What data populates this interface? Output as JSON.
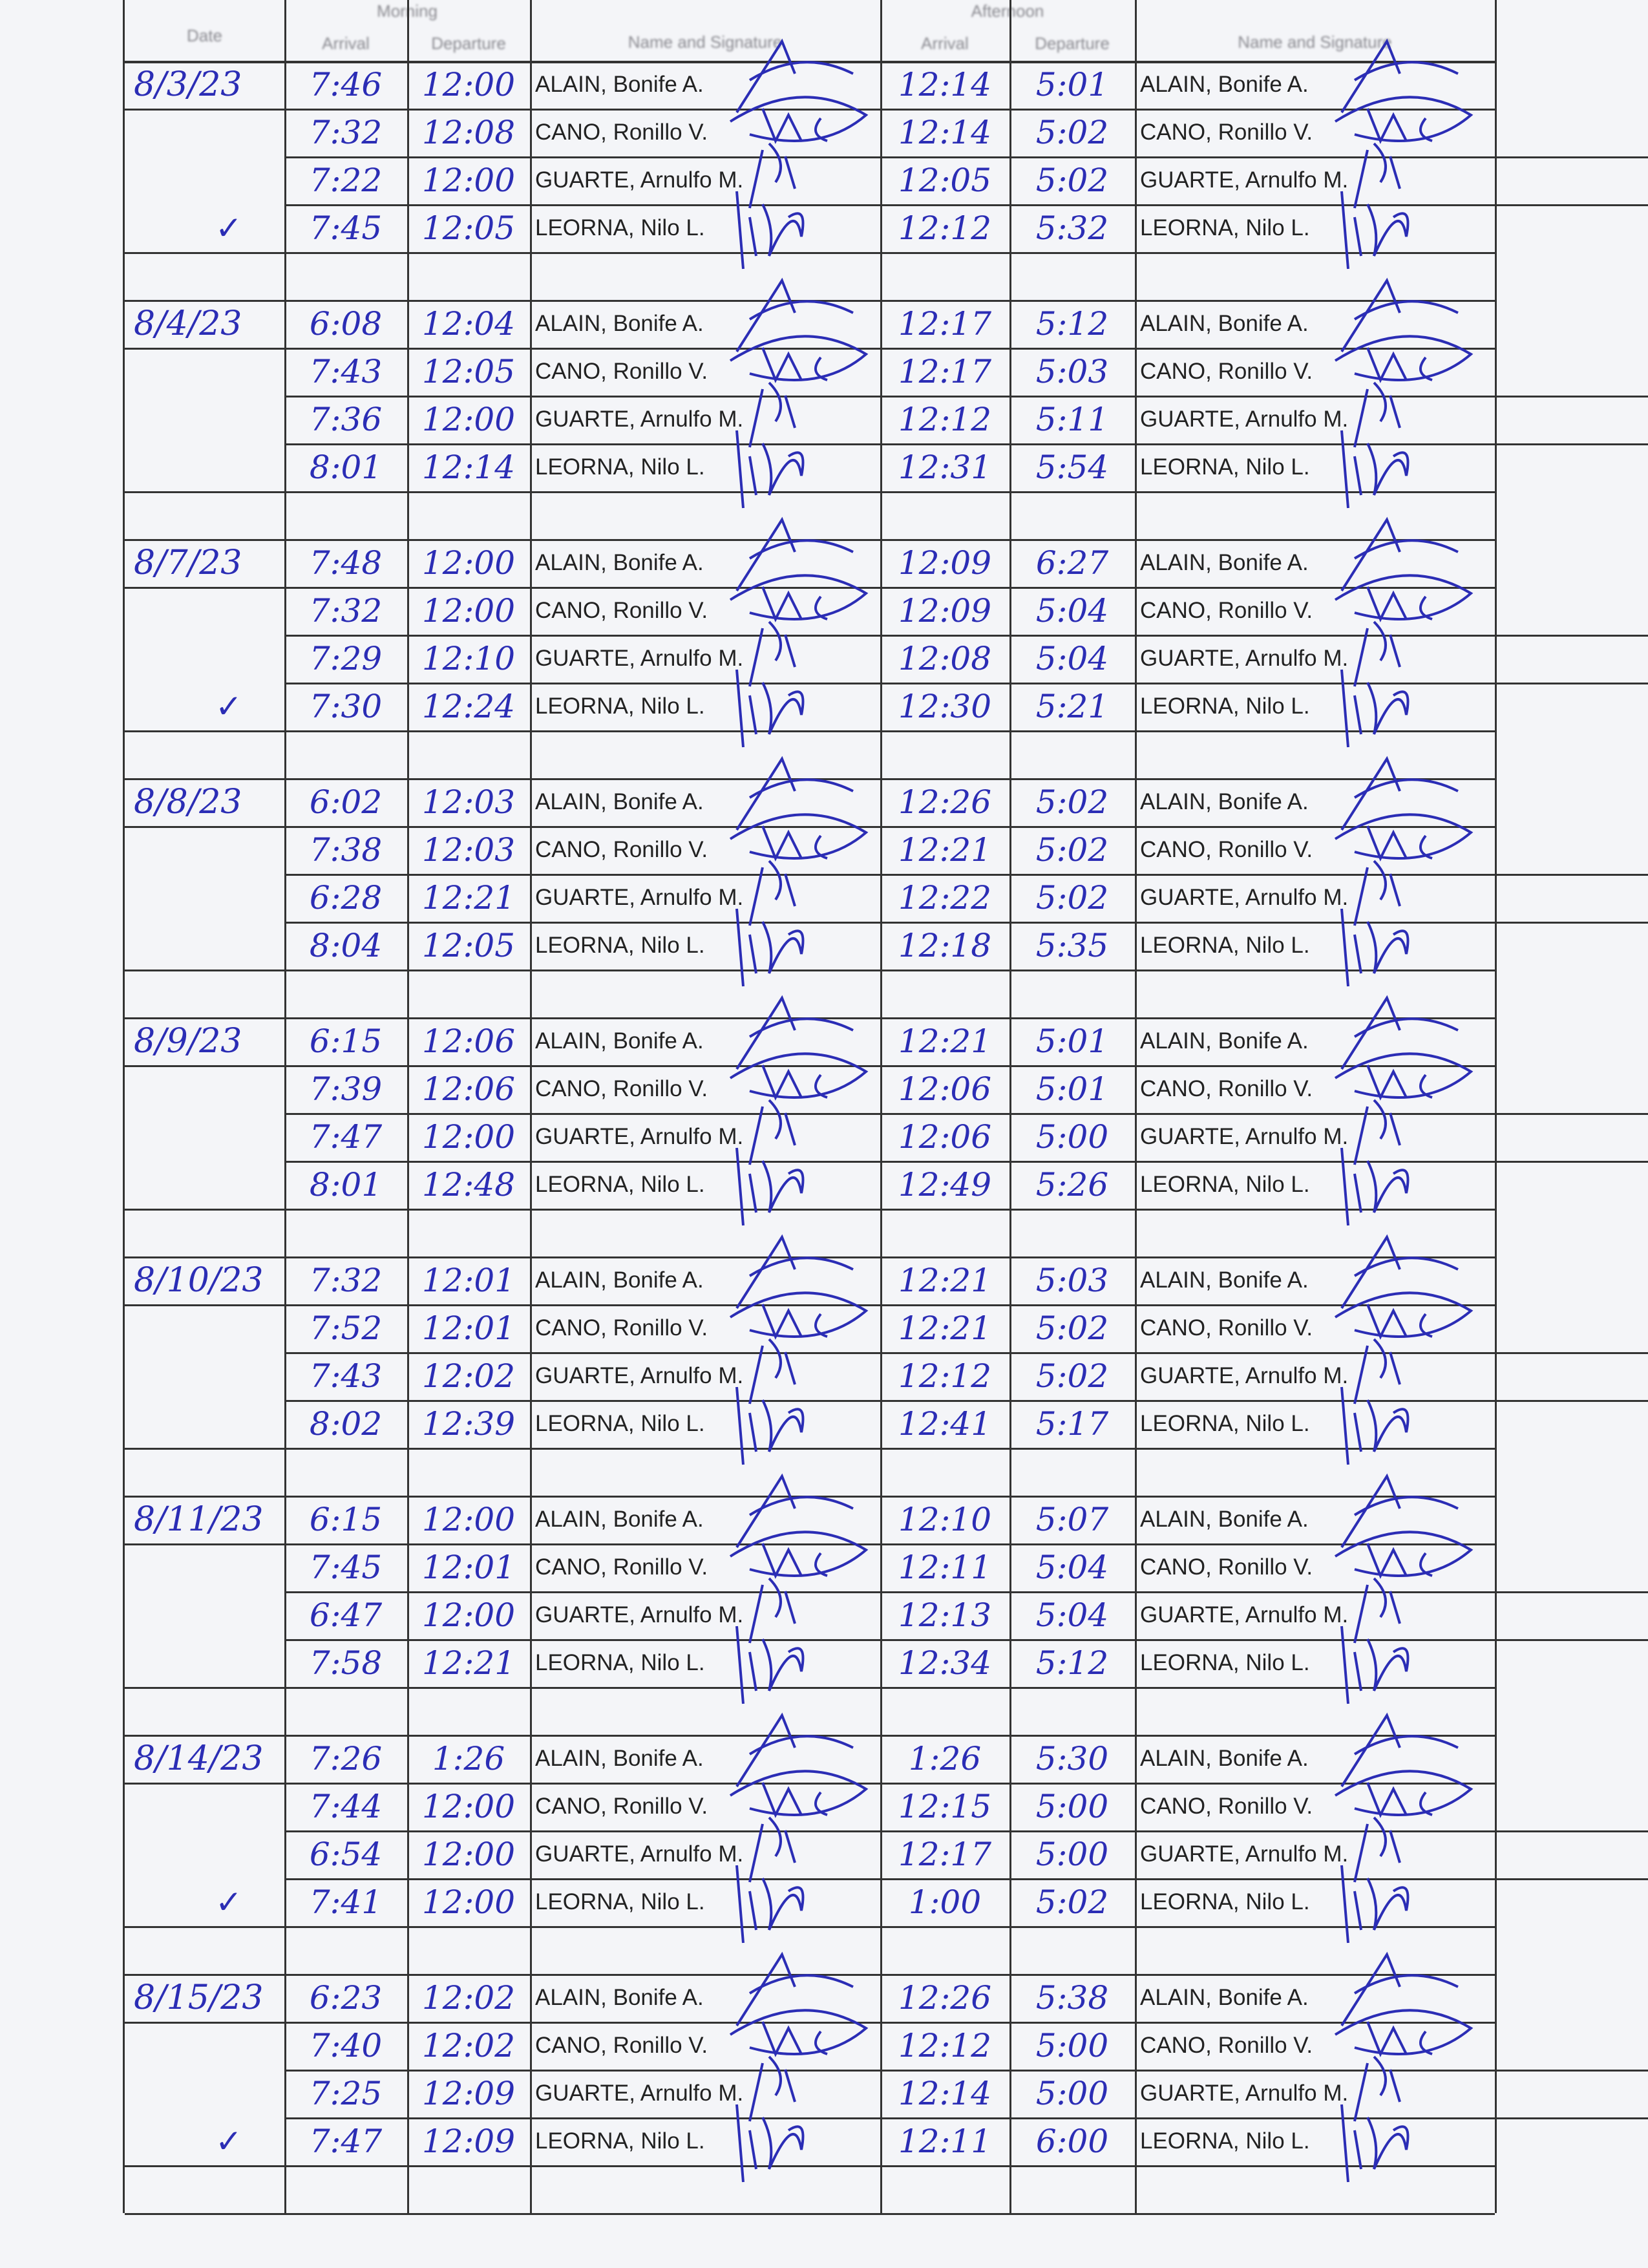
{
  "header": {
    "date": "Date",
    "morning": "Morning",
    "afternoon": "Afternoon",
    "arrival": "Arrival",
    "departure": "Departure",
    "name_signature": "Name and Signature"
  },
  "ink_color": "#2b2db5",
  "employees": [
    "ALAIN, Bonife A.",
    "CANO, Ronillo V.",
    "GUARTE, Arnulfo M.",
    "LEORNA, Nilo L."
  ],
  "days": [
    {
      "date": "8/3/23",
      "checked": true,
      "rows": [
        [
          "7:46",
          "12:00",
          "12:14",
          "5:01"
        ],
        [
          "7:32",
          "12:08",
          "12:14",
          "5:02"
        ],
        [
          "7:22",
          "12:00",
          "12:05",
          "5:02"
        ],
        [
          "7:45",
          "12:05",
          "12:12",
          "5:32"
        ]
      ]
    },
    {
      "date": "8/4/23",
      "checked": false,
      "rows": [
        [
          "6:08",
          "12:04",
          "12:17",
          "5:12"
        ],
        [
          "7:43",
          "12:05",
          "12:17",
          "5:03"
        ],
        [
          "7:36",
          "12:00",
          "12:12",
          "5:11"
        ],
        [
          "8:01",
          "12:14",
          "12:31",
          "5:54"
        ]
      ]
    },
    {
      "date": "8/7/23",
      "checked": true,
      "rows": [
        [
          "7:48",
          "12:00",
          "12:09",
          "6:27"
        ],
        [
          "7:32",
          "12:00",
          "12:09",
          "5:04"
        ],
        [
          "7:29",
          "12:10",
          "12:08",
          "5:04"
        ],
        [
          "7:30",
          "12:24",
          "12:30",
          "5:21"
        ]
      ]
    },
    {
      "date": "8/8/23",
      "checked": false,
      "rows": [
        [
          "6:02",
          "12:03",
          "12:26",
          "5:02"
        ],
        [
          "7:38",
          "12:03",
          "12:21",
          "5:02"
        ],
        [
          "6:28",
          "12:21",
          "12:22",
          "5:02"
        ],
        [
          "8:04",
          "12:05",
          "12:18",
          "5:35"
        ]
      ]
    },
    {
      "date": "8/9/23",
      "checked": false,
      "rows": [
        [
          "6:15",
          "12:06",
          "12:21",
          "5:01"
        ],
        [
          "7:39",
          "12:06",
          "12:06",
          "5:01"
        ],
        [
          "7:47",
          "12:00",
          "12:06",
          "5:00"
        ],
        [
          "8:01",
          "12:48",
          "12:49",
          "5:26"
        ]
      ]
    },
    {
      "date": "8/10/23",
      "checked": false,
      "rows": [
        [
          "7:32",
          "12:01",
          "12:21",
          "5:03"
        ],
        [
          "7:52",
          "12:01",
          "12:21",
          "5:02"
        ],
        [
          "7:43",
          "12:02",
          "12:12",
          "5:02"
        ],
        [
          "8:02",
          "12:39",
          "12:41",
          "5:17"
        ]
      ]
    },
    {
      "date": "8/11/23",
      "checked": false,
      "rows": [
        [
          "6:15",
          "12:00",
          "12:10",
          "5:07"
        ],
        [
          "7:45",
          "12:01",
          "12:11",
          "5:04"
        ],
        [
          "6:47",
          "12:00",
          "12:13",
          "5:04"
        ],
        [
          "7:58",
          "12:21",
          "12:34",
          "5:12"
        ]
      ]
    },
    {
      "date": "8/14/23",
      "checked": true,
      "rows": [
        [
          "7:26",
          "1:26",
          "1:26",
          "5:30"
        ],
        [
          "7:44",
          "12:00",
          "12:15",
          "5:00"
        ],
        [
          "6:54",
          "12:00",
          "12:17",
          "5:00"
        ],
        [
          "7:41",
          "12:00",
          "1:00",
          "5:02"
        ]
      ]
    },
    {
      "date": "8/15/23",
      "checked": true,
      "rows": [
        [
          "6:23",
          "12:02",
          "12:26",
          "5:38"
        ],
        [
          "7:40",
          "12:02",
          "12:12",
          "5:00"
        ],
        [
          "7:25",
          "12:09",
          "12:14",
          "5:00"
        ],
        [
          "7:47",
          "12:09",
          "12:11",
          "6:00"
        ]
      ]
    }
  ]
}
